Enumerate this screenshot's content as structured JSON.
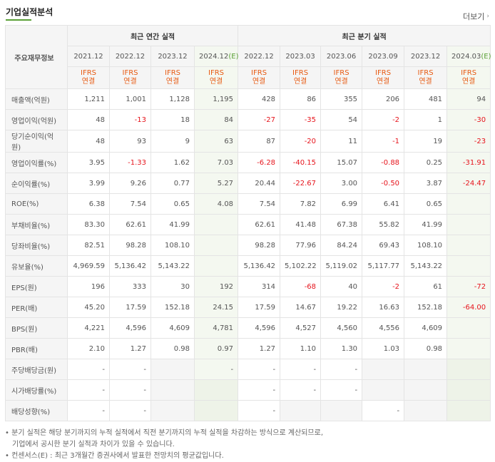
{
  "header": {
    "title": "기업실적분석",
    "more_label": "더보기"
  },
  "table": {
    "row_header_label": "주요재무정보",
    "annual_group_label": "최근 연간 실적",
    "quarter_group_label": "최근 분기 실적",
    "periods": [
      "2021.12",
      "2022.12",
      "2023.12",
      "2024.12",
      "2022.12",
      "2023.03",
      "2023.06",
      "2023.09",
      "2023.12",
      "2024.03"
    ],
    "estimate_suffix": "(E)",
    "estimate_columns": [
      3,
      9
    ],
    "ifrs_line1": "IFRS",
    "ifrs_line2": "연결",
    "rows": [
      {
        "label": "매출액(억원)",
        "values": [
          "1,211",
          "1,001",
          "1,128",
          "1,195",
          "428",
          "86",
          "355",
          "206",
          "481",
          "94"
        ]
      },
      {
        "label": "영업이익(억원)",
        "values": [
          "48",
          "-13",
          "18",
          "84",
          "-27",
          "-35",
          "54",
          "-2",
          "1",
          "-30"
        ]
      },
      {
        "label": "당기순이익(억원)",
        "values": [
          "48",
          "93",
          "9",
          "63",
          "87",
          "-20",
          "11",
          "-1",
          "19",
          "-23"
        ]
      },
      {
        "label": "영업이익률(%)",
        "values": [
          "3.95",
          "-1.33",
          "1.62",
          "7.03",
          "-6.28",
          "-40.15",
          "15.07",
          "-0.88",
          "0.25",
          "-31.91"
        ]
      },
      {
        "label": "순이익률(%)",
        "values": [
          "3.99",
          "9.26",
          "0.77",
          "5.27",
          "20.44",
          "-22.67",
          "3.00",
          "-0.50",
          "3.87",
          "-24.47"
        ]
      },
      {
        "label": "ROE(%)",
        "values": [
          "6.38",
          "7.54",
          "0.65",
          "4.08",
          "7.54",
          "7.82",
          "6.99",
          "6.41",
          "0.65",
          ""
        ]
      },
      {
        "label": "부채비율(%)",
        "values": [
          "83.30",
          "62.61",
          "41.99",
          "",
          "62.61",
          "41.48",
          "67.38",
          "55.82",
          "41.99",
          ""
        ]
      },
      {
        "label": "당좌비율(%)",
        "values": [
          "82.51",
          "98.28",
          "108.10",
          "",
          "98.28",
          "77.96",
          "84.24",
          "69.43",
          "108.10",
          ""
        ]
      },
      {
        "label": "유보율(%)",
        "values": [
          "4,969.59",
          "5,136.42",
          "5,143.22",
          "",
          "5,136.42",
          "5,102.22",
          "5,119.02",
          "5,117.77",
          "5,143.22",
          ""
        ]
      },
      {
        "label": "EPS(원)",
        "values": [
          "196",
          "333",
          "30",
          "192",
          "314",
          "-68",
          "40",
          "-2",
          "61",
          "-72"
        ]
      },
      {
        "label": "PER(배)",
        "values": [
          "45.20",
          "17.59",
          "152.18",
          "24.15",
          "17.59",
          "14.67",
          "19.22",
          "16.63",
          "152.18",
          "-64.00"
        ]
      },
      {
        "label": "BPS(원)",
        "values": [
          "4,221",
          "4,596",
          "4,609",
          "4,781",
          "4,596",
          "4,527",
          "4,560",
          "4,556",
          "4,609",
          ""
        ]
      },
      {
        "label": "PBR(배)",
        "values": [
          "2.10",
          "1.27",
          "0.98",
          "0.97",
          "1.27",
          "1.10",
          "1.30",
          "1.03",
          "0.98",
          ""
        ]
      },
      {
        "label": "주당배당금(원)",
        "values": [
          "-",
          "-",
          "",
          "-",
          "-",
          "-",
          "-",
          "",
          "",
          ""
        ]
      },
      {
        "label": "시가배당률(%)",
        "values": [
          "-",
          "-",
          "",
          "",
          "-",
          "-",
          "-",
          "",
          "",
          ""
        ]
      },
      {
        "label": "배당성향(%)",
        "values": [
          "-",
          "-",
          "",
          "",
          "-",
          "",
          "",
          "-",
          "",
          ""
        ]
      }
    ],
    "separator_rows": [
      3,
      5,
      9,
      13
    ],
    "gray_cells": {
      "13": [
        2,
        7,
        8,
        9
      ],
      "14": [
        2,
        3,
        7,
        8,
        9
      ],
      "15": [
        2,
        3,
        5,
        6,
        8,
        9
      ]
    }
  },
  "notes": {
    "line1": "• 분기 실적은 해당 분기까지의 누적 실적에서 직전 분기까지의 누적 실적을 차감하는 방식으로 계산되므로,",
    "line2": "기업에서 공시한 분기 실적과 차이가 있을 수 있습니다.",
    "line3": "• 컨센서스(E) : 최근 3개월간 증권사에서 발표한 전망치의 평균값입니다."
  }
}
